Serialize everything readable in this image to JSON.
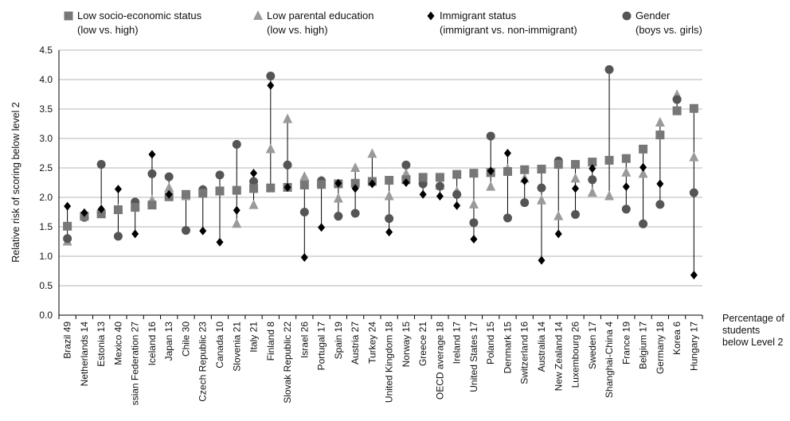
{
  "chart_data": {
    "type": "scatter",
    "ylabel": "Relative risk of scoring below level 2",
    "ylim": [
      0,
      4.5
    ],
    "yticks": [
      "0.0",
      "0.5",
      "1.0",
      "1.5",
      "2.0",
      "2.5",
      "3.0",
      "3.5",
      "4.0",
      "4.5"
    ],
    "grid": true,
    "legend_position": "top",
    "right_note": [
      "Percentage of",
      "students",
      "below Level 2"
    ],
    "categories": [
      "Brazil",
      "Netherlands",
      "Estonia",
      "Mexico",
      "Russian Federation",
      "Iceland",
      "Japan",
      "Chile",
      "Czech Republic",
      "Canada",
      "Slovenia",
      "Italy",
      "Finland",
      "Slovak Republic",
      "Israel",
      "Portugal",
      "Spain",
      "Austria",
      "Turkey",
      "United Kingdom",
      "Norway",
      "Greece",
      "OECD average",
      "Ireland",
      "United States",
      "Poland",
      "Denmark",
      "Switzerland",
      "Australia",
      "New Zealand",
      "Luxembourg",
      "Sweden",
      "Shanghai-China",
      "France",
      "Belgium",
      "Germany",
      "Korea",
      "Hungary"
    ],
    "category_labels": [
      "Brazil",
      "Netherlands",
      "Estonia",
      "Mexico",
      "ssian Federation",
      "Iceland",
      "Japan",
      "Chile",
      "Czech Republic",
      "Canada",
      "Slovenia",
      "Italy",
      "Finland",
      "Slovak Republic",
      "Israel",
      "Portugal",
      "Spain",
      "Austria",
      "Turkey",
      "United Kingdom",
      "Norway",
      "Greece",
      "OECD average",
      "Ireland",
      "United States",
      "Poland",
      "Denmark",
      "Switzerland",
      "Australia",
      "New Zealand",
      "Luxembourg",
      "Sweden",
      "Shanghai-China",
      "France",
      "Belgium",
      "Germany",
      "Korea",
      "Hungary"
    ],
    "pct_below_level2": [
      "49",
      "14",
      "13",
      "40",
      "27",
      "16",
      "13",
      "30",
      "23",
      "10",
      "21",
      "21",
      "8",
      "22",
      "26",
      "17",
      "19",
      "27",
      "24",
      "18",
      "15",
      "21",
      "18",
      "17",
      "17",
      "15",
      "15",
      "16",
      "14",
      "14",
      "26",
      "17",
      "4",
      "19",
      "17",
      "18",
      "6",
      "17"
    ],
    "series": [
      {
        "name": "Low socio-economic status",
        "sub": "(low vs. high)",
        "marker": "square",
        "color": "#777777",
        "values": [
          1.51,
          1.68,
          1.72,
          1.79,
          1.83,
          1.87,
          2.01,
          2.05,
          2.07,
          2.11,
          2.12,
          2.15,
          2.16,
          2.17,
          2.21,
          2.22,
          2.23,
          2.24,
          2.27,
          2.29,
          2.3,
          2.34,
          2.34,
          2.39,
          2.41,
          2.42,
          2.44,
          2.47,
          2.48,
          2.56,
          2.56,
          2.6,
          2.63,
          2.66,
          2.82,
          3.06,
          3.47,
          3.51
        ]
      },
      {
        "name": "Low parental education",
        "sub": "(low vs. high)",
        "marker": "triangle",
        "color": "#9a9a9a",
        "values": [
          1.25,
          1.72,
          1.8,
          1.8,
          1.87,
          1.95,
          2.16,
          2.02,
          2.13,
          2.1,
          1.55,
          1.87,
          2.82,
          3.33,
          2.35,
          2.28,
          1.98,
          2.5,
          2.74,
          2.02,
          2.4,
          2.3,
          2.2,
          2.1,
          1.88,
          2.18,
          2.48,
          2.32,
          1.95,
          1.68,
          2.32,
          2.08,
          2.02,
          2.42,
          2.4,
          3.27,
          3.74,
          2.68
        ]
      },
      {
        "name": "Immigrant status",
        "sub": "(immigrant vs. non-immigrant)",
        "marker": "diamond",
        "color": "#000000",
        "values": [
          1.85,
          1.74,
          1.8,
          2.14,
          1.38,
          2.73,
          2.05,
          null,
          1.43,
          1.24,
          1.78,
          2.41,
          3.9,
          2.17,
          0.98,
          1.49,
          2.24,
          2.15,
          2.23,
          1.41,
          2.25,
          2.05,
          2.02,
          1.86,
          1.29,
          2.45,
          2.75,
          2.28,
          0.93,
          1.38,
          2.15,
          2.49,
          null,
          2.18,
          2.51,
          2.23,
          null,
          0.68
        ]
      },
      {
        "name": "Gender",
        "sub": "(boys vs. girls)",
        "marker": "circle",
        "color": "#555555",
        "values": [
          1.3,
          1.66,
          2.56,
          1.34,
          1.92,
          2.4,
          2.35,
          1.44,
          2.13,
          2.38,
          2.9,
          2.27,
          4.06,
          2.55,
          1.75,
          2.28,
          1.68,
          1.73,
          2.26,
          1.64,
          2.55,
          2.23,
          2.19,
          2.05,
          1.57,
          3.04,
          1.65,
          1.91,
          2.16,
          2.62,
          1.71,
          2.3,
          4.17,
          1.8,
          1.55,
          1.88,
          3.66,
          2.08
        ]
      }
    ]
  }
}
